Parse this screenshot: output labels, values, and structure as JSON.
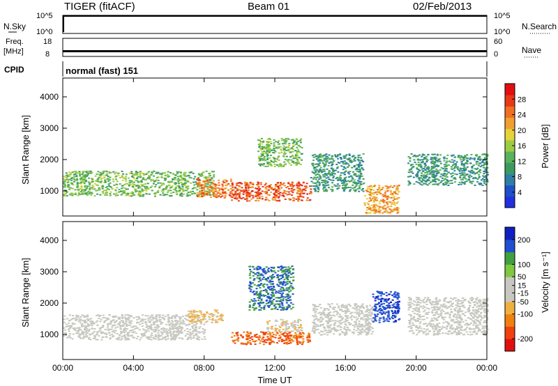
{
  "header": {
    "title": "TIGER (fitACF)",
    "beam": "Beam 01",
    "date": "02/Feb/2013"
  },
  "strips": {
    "nsky_label": "N.Sky",
    "nsky_ticks": [
      "10^5",
      "10^0"
    ],
    "nsearch_label": "N.Search",
    "nsearch_ticks": [
      "10^5",
      "10^0"
    ],
    "freq_label": "Freq.",
    "freq_unit": "[MHz]",
    "freq_ticks": [
      "18",
      "8"
    ],
    "nave_label": "Nave",
    "nave_ticks": [
      "60",
      "0"
    ],
    "cpid_label": "CPID",
    "cpid_value": "normal (fast) 151"
  },
  "colors": {
    "power_scale": [
      "#2030e0",
      "#2050c8",
      "#2e7fa8",
      "#3c9a60",
      "#5ab25a",
      "#9ccc44",
      "#e6d23a",
      "#f0a030",
      "#f07020",
      "#e83818",
      "#e01010"
    ],
    "velocity_scale": [
      "#e01010",
      "#f04010",
      "#f08010",
      "#f0b040",
      "#c8c8c0",
      "#c8c8c0",
      "#80c840",
      "#40a040",
      "#2050d0",
      "#1020c0"
    ]
  },
  "chart_data": [
    {
      "type": "heatmap",
      "name": "power",
      "xlabel": "",
      "ylabel": "Slant Range [km]",
      "colorbar_label": "Power [dB]",
      "colorbar_ticks": [
        "28",
        "24",
        "20",
        "16",
        "12",
        "8",
        "4"
      ],
      "colorbar_values": [
        28,
        24,
        20,
        16,
        12,
        8,
        4
      ],
      "clim": [
        0,
        32
      ],
      "xlim": [
        0,
        24
      ],
      "ylim": [
        200,
        4600
      ],
      "yticks": [
        1000,
        2000,
        3000,
        4000
      ],
      "ytick_labels": [
        "1000",
        "2000",
        "3000",
        "4000"
      ],
      "bands": [
        {
          "t0": 0.0,
          "t1": 8.5,
          "r0": 850,
          "r1": 1650,
          "power": 14
        },
        {
          "t0": 7.5,
          "t1": 9.5,
          "r0": 800,
          "r1": 1400,
          "power": 24
        },
        {
          "t0": 9.5,
          "t1": 14.0,
          "r0": 700,
          "r1": 1300,
          "power": 26
        },
        {
          "t0": 11.0,
          "t1": 13.5,
          "r0": 1800,
          "r1": 2700,
          "power": 14
        },
        {
          "t0": 14.0,
          "t1": 17.0,
          "r0": 1000,
          "r1": 2200,
          "power": 10
        },
        {
          "t0": 17.0,
          "t1": 19.0,
          "r0": 300,
          "r1": 1200,
          "power": 22
        },
        {
          "t0": 19.5,
          "t1": 24.0,
          "r0": 1200,
          "r1": 2200,
          "power": 10
        }
      ]
    },
    {
      "type": "heatmap",
      "name": "velocity",
      "xlabel": "Time UT",
      "ylabel": "Slant Range [km]",
      "colorbar_label": "Velocity [m s⁻¹]",
      "colorbar_ticks": [
        "200",
        "100",
        "50",
        "15",
        "-15",
        "-50",
        "-100",
        "-200"
      ],
      "colorbar_values": [
        200,
        100,
        50,
        15,
        -15,
        -50,
        -100,
        -200
      ],
      "clim": [
        -250,
        250
      ],
      "xlim": [
        0,
        24
      ],
      "ylim": [
        200,
        4600
      ],
      "yticks": [
        1000,
        2000,
        3000,
        4000
      ],
      "ytick_labels": [
        "1000",
        "2000",
        "3000",
        "4000"
      ],
      "xticks": [
        0,
        4,
        8,
        12,
        16,
        20,
        24
      ],
      "xtick_labels": [
        "00:00",
        "04:00",
        "08:00",
        "12:00",
        "16:00",
        "20:00",
        "00:00"
      ],
      "bands": [
        {
          "t0": 0.0,
          "t1": 8.0,
          "r0": 850,
          "r1": 1650,
          "velocity": 0
        },
        {
          "t0": 7.0,
          "t1": 9.0,
          "r0": 1400,
          "r1": 1800,
          "velocity": -60
        },
        {
          "t0": 9.5,
          "t1": 14.0,
          "r0": 700,
          "r1": 1100,
          "velocity": -150
        },
        {
          "t0": 10.5,
          "t1": 13.0,
          "r0": 1800,
          "r1": 3200,
          "velocity": 150
        },
        {
          "t0": 11.5,
          "t1": 13.5,
          "r0": 1100,
          "r1": 1500,
          "velocity": -40
        },
        {
          "t0": 14.0,
          "t1": 17.5,
          "r0": 1000,
          "r1": 2000,
          "velocity": 0
        },
        {
          "t0": 17.5,
          "t1": 19.0,
          "r0": 1400,
          "r1": 2400,
          "velocity": 180
        },
        {
          "t0": 19.5,
          "t1": 24.0,
          "r0": 1000,
          "r1": 2200,
          "velocity": 0
        }
      ]
    }
  ]
}
